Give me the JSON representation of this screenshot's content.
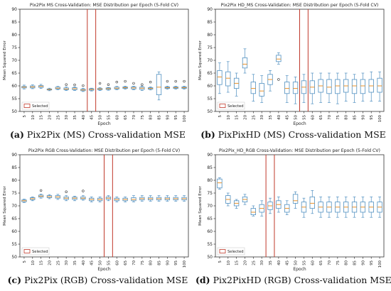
{
  "chart_data": [
    {
      "type": "boxplot",
      "title": "Pix2Pix MS Cross-Validation: MSE Distribution per Epoch (5-Fold CV)",
      "xlabel": "Epoch",
      "ylabel": "Mean Squared Error",
      "ylim": [
        50,
        90
      ],
      "yticks": [
        50,
        55,
        60,
        65,
        70,
        75,
        80,
        85,
        90
      ],
      "categories": [
        "5",
        "10",
        "15",
        "20",
        "25",
        "30",
        "35",
        "40",
        "45",
        "50",
        "55",
        "60",
        "65",
        "70",
        "75",
        "80",
        "85",
        "90",
        "95",
        "100"
      ],
      "selected": [
        "45"
      ],
      "legend": "Selected",
      "legend_position": "bottom-left",
      "caption_letter": "(a)",
      "caption_text": "Pix2Pix (MS) Cross-validation MSE",
      "boxes": [
        {
          "whislo": 58.8,
          "q1": 59.2,
          "med": 59.5,
          "q3": 59.8,
          "whishi": 60.3,
          "fliers": []
        },
        {
          "whislo": 58.9,
          "q1": 59.2,
          "med": 59.6,
          "q3": 60.0,
          "whishi": 60.4,
          "fliers": []
        },
        {
          "whislo": 59.0,
          "q1": 59.4,
          "med": 59.8,
          "q3": 60.1,
          "whishi": 60.6,
          "fliers": []
        },
        {
          "whislo": 58.1,
          "q1": 58.4,
          "med": 58.6,
          "q3": 58.8,
          "whishi": 59.1,
          "fliers": []
        },
        {
          "whislo": 58.5,
          "q1": 58.8,
          "med": 59.1,
          "q3": 59.5,
          "whishi": 59.8,
          "fliers": []
        },
        {
          "whislo": 58.2,
          "q1": 58.5,
          "med": 58.8,
          "q3": 59.2,
          "whishi": 59.6,
          "fliers": [
            60.5
          ]
        },
        {
          "whislo": 58.2,
          "q1": 58.5,
          "med": 58.9,
          "q3": 59.3,
          "whishi": 59.6,
          "fliers": [
            60.4
          ]
        },
        {
          "whislo": 57.8,
          "q1": 58.1,
          "med": 58.4,
          "q3": 58.7,
          "whishi": 59.0,
          "fliers": [
            60.1
          ]
        },
        {
          "whislo": 58.0,
          "q1": 58.3,
          "med": 58.6,
          "q3": 58.9,
          "whishi": 59.1,
          "fliers": []
        },
        {
          "whislo": 58.2,
          "q1": 58.5,
          "med": 58.8,
          "q3": 59.0,
          "whishi": 59.3,
          "fliers": [
            61.0
          ]
        },
        {
          "whislo": 58.3,
          "q1": 58.6,
          "med": 58.9,
          "q3": 59.2,
          "whishi": 59.4,
          "fliers": [
            60.5
          ]
        },
        {
          "whislo": 58.5,
          "q1": 58.8,
          "med": 59.1,
          "q3": 59.5,
          "whishi": 59.8,
          "fliers": [
            61.5
          ]
        },
        {
          "whislo": 58.7,
          "q1": 59.0,
          "med": 59.3,
          "q3": 59.6,
          "whishi": 59.9,
          "fliers": [
            61.8
          ]
        },
        {
          "whislo": 58.5,
          "q1": 58.8,
          "med": 59.2,
          "q3": 59.6,
          "whishi": 59.9,
          "fliers": [
            61.0
          ]
        },
        {
          "whislo": 58.2,
          "q1": 58.6,
          "med": 59.1,
          "q3": 59.5,
          "whishi": 59.8,
          "fliers": [
            60.5
          ]
        },
        {
          "whislo": 58.4,
          "q1": 58.7,
          "med": 59.0,
          "q3": 59.3,
          "whishi": 59.6,
          "fliers": [
            61.5
          ]
        },
        {
          "whislo": 54.5,
          "q1": 56.5,
          "med": 59.5,
          "q3": 64.5,
          "whishi": 65.5,
          "fliers": []
        },
        {
          "whislo": 58.7,
          "q1": 59.0,
          "med": 59.3,
          "q3": 59.6,
          "whishi": 59.9,
          "fliers": [
            61.8
          ]
        },
        {
          "whislo": 58.7,
          "q1": 59.0,
          "med": 59.3,
          "q3": 59.6,
          "whishi": 59.9,
          "fliers": [
            61.8
          ]
        },
        {
          "whislo": 58.7,
          "q1": 59.0,
          "med": 59.3,
          "q3": 59.6,
          "whishi": 59.9,
          "fliers": [
            61.8
          ]
        }
      ]
    },
    {
      "type": "boxplot",
      "title": "Pix2Pix HD_MS Cross-Validation: MSE Distribution per Epoch (5-Fold CV)",
      "xlabel": "Epoch",
      "ylabel": "Mean Squared Error",
      "ylim": [
        50,
        90
      ],
      "yticks": [
        50,
        55,
        60,
        65,
        70,
        75,
        80,
        85,
        90
      ],
      "categories": [
        "5",
        "10",
        "15",
        "20",
        "25",
        "30",
        "35",
        "40",
        "45",
        "50",
        "55",
        "60",
        "65",
        "70",
        "75",
        "80",
        "85",
        "90",
        "95",
        "100"
      ],
      "selected": [
        "55"
      ],
      "legend": "Selected",
      "legend_position": "bottom-left",
      "caption_letter": "(b)",
      "caption_text": "PixPixHD (MS) Cross-validation MSE",
      "boxes": [
        {
          "whislo": 57.0,
          "q1": 60.5,
          "med": 63.5,
          "q3": 66.0,
          "whishi": 69.0,
          "fliers": []
        },
        {
          "whislo": 57.5,
          "q1": 60.0,
          "med": 63.0,
          "q3": 65.5,
          "whishi": 69.5,
          "fliers": []
        },
        {
          "whislo": 56.0,
          "q1": 59.0,
          "med": 61.0,
          "q3": 63.0,
          "whishi": 65.0,
          "fliers": []
        },
        {
          "whislo": 65.0,
          "q1": 67.0,
          "med": 68.5,
          "q3": 71.0,
          "whishi": 74.5,
          "fliers": []
        },
        {
          "whislo": 54.0,
          "q1": 57.0,
          "med": 59.0,
          "q3": 61.5,
          "whishi": 64.5,
          "fliers": []
        },
        {
          "whislo": 53.5,
          "q1": 56.0,
          "med": 58.0,
          "q3": 61.0,
          "whishi": 64.0,
          "fliers": []
        },
        {
          "whislo": 58.0,
          "q1": 60.5,
          "med": 62.5,
          "q3": 64.5,
          "whishi": 66.0,
          "fliers": []
        },
        {
          "whislo": 68.5,
          "q1": 69.5,
          "med": 70.5,
          "q3": 72.0,
          "whishi": 73.0,
          "fliers": [
            62.5
          ]
        },
        {
          "whislo": 53.5,
          "q1": 57.0,
          "med": 59.0,
          "q3": 61.5,
          "whishi": 64.0,
          "fliers": []
        },
        {
          "whislo": 53.0,
          "q1": 57.0,
          "med": 59.0,
          "q3": 61.5,
          "whishi": 63.5,
          "fliers": []
        },
        {
          "whislo": 53.5,
          "q1": 57.0,
          "med": 59.5,
          "q3": 62.0,
          "whishi": 64.5,
          "fliers": []
        },
        {
          "whislo": 53.0,
          "q1": 57.0,
          "med": 59.5,
          "q3": 62.0,
          "whishi": 65.0,
          "fliers": []
        },
        {
          "whislo": 53.5,
          "q1": 57.5,
          "med": 60.0,
          "q3": 62.5,
          "whishi": 65.0,
          "fliers": []
        },
        {
          "whislo": 53.5,
          "q1": 57.0,
          "med": 59.5,
          "q3": 62.5,
          "whishi": 65.0,
          "fliers": []
        },
        {
          "whislo": 53.0,
          "q1": 57.0,
          "med": 60.0,
          "q3": 62.5,
          "whishi": 65.0,
          "fliers": []
        },
        {
          "whislo": 54.0,
          "q1": 57.5,
          "med": 60.0,
          "q3": 62.5,
          "whishi": 65.0,
          "fliers": []
        },
        {
          "whislo": 53.5,
          "q1": 57.0,
          "med": 60.0,
          "q3": 62.5,
          "whishi": 64.5,
          "fliers": []
        },
        {
          "whislo": 54.0,
          "q1": 57.0,
          "med": 60.0,
          "q3": 62.5,
          "whishi": 65.0,
          "fliers": []
        },
        {
          "whislo": 54.0,
          "q1": 57.5,
          "med": 60.0,
          "q3": 62.5,
          "whishi": 65.5,
          "fliers": []
        },
        {
          "whislo": 54.0,
          "q1": 57.5,
          "med": 60.0,
          "q3": 63.0,
          "whishi": 65.5,
          "fliers": []
        }
      ]
    },
    {
      "type": "boxplot",
      "title": "Pix2Pix RGB Cross-Validation: MSE Distribution per Epoch (5-Fold CV)",
      "xlabel": "Epoch",
      "ylabel": "Mean Squared Error",
      "ylim": [
        50,
        90
      ],
      "yticks": [
        50,
        55,
        60,
        65,
        70,
        75,
        80,
        85,
        90
      ],
      "categories": [
        "5",
        "10",
        "15",
        "20",
        "25",
        "30",
        "35",
        "40",
        "45",
        "50",
        "55",
        "60",
        "65",
        "70",
        "75",
        "80",
        "85",
        "90",
        "95",
        "100"
      ],
      "selected": [
        "55"
      ],
      "legend": "Selected",
      "legend_position": "bottom-left",
      "caption_letter": "(c)",
      "caption_text": "Pix2Pix (RGB) Cross-validation MSE",
      "boxes": [
        {
          "whislo": 71.3,
          "q1": 71.6,
          "med": 72.0,
          "q3": 72.3,
          "whishi": 72.6,
          "fliers": []
        },
        {
          "whislo": 72.0,
          "q1": 72.4,
          "med": 72.8,
          "q3": 73.2,
          "whishi": 73.5,
          "fliers": []
        },
        {
          "whislo": 73.0,
          "q1": 73.4,
          "med": 73.8,
          "q3": 74.2,
          "whishi": 74.6,
          "fliers": [
            76.0
          ]
        },
        {
          "whislo": 72.8,
          "q1": 73.2,
          "med": 73.6,
          "q3": 74.0,
          "whishi": 74.4,
          "fliers": []
        },
        {
          "whislo": 72.5,
          "q1": 73.0,
          "med": 73.5,
          "q3": 74.0,
          "whishi": 74.5,
          "fliers": []
        },
        {
          "whislo": 72.0,
          "q1": 72.5,
          "med": 73.0,
          "q3": 73.5,
          "whishi": 74.0,
          "fliers": [
            75.5
          ]
        },
        {
          "whislo": 72.0,
          "q1": 72.5,
          "med": 73.0,
          "q3": 73.4,
          "whishi": 73.8,
          "fliers": []
        },
        {
          "whislo": 72.2,
          "q1": 72.6,
          "med": 73.0,
          "q3": 73.5,
          "whishi": 74.0,
          "fliers": [
            75.8
          ]
        },
        {
          "whislo": 71.5,
          "q1": 72.0,
          "med": 72.5,
          "q3": 73.0,
          "whishi": 73.5,
          "fliers": []
        },
        {
          "whislo": 71.5,
          "q1": 72.0,
          "med": 72.5,
          "q3": 73.0,
          "whishi": 73.5,
          "fliers": []
        },
        {
          "whislo": 72.0,
          "q1": 72.5,
          "med": 73.0,
          "q3": 73.5,
          "whishi": 74.0,
          "fliers": []
        },
        {
          "whislo": 71.5,
          "q1": 72.0,
          "med": 72.5,
          "q3": 73.0,
          "whishi": 73.5,
          "fliers": []
        },
        {
          "whislo": 71.5,
          "q1": 72.0,
          "med": 72.5,
          "q3": 73.0,
          "whishi": 73.5,
          "fliers": []
        },
        {
          "whislo": 71.5,
          "q1": 72.0,
          "med": 72.5,
          "q3": 73.2,
          "whishi": 74.0,
          "fliers": []
        },
        {
          "whislo": 71.8,
          "q1": 72.3,
          "med": 72.8,
          "q3": 73.3,
          "whishi": 74.0,
          "fliers": []
        },
        {
          "whislo": 71.8,
          "q1": 72.3,
          "med": 72.8,
          "q3": 73.3,
          "whishi": 74.0,
          "fliers": []
        },
        {
          "whislo": 71.8,
          "q1": 72.3,
          "med": 72.8,
          "q3": 73.3,
          "whishi": 74.0,
          "fliers": []
        },
        {
          "whislo": 71.8,
          "q1": 72.3,
          "med": 72.8,
          "q3": 73.3,
          "whishi": 74.0,
          "fliers": []
        },
        {
          "whislo": 71.8,
          "q1": 72.3,
          "med": 72.8,
          "q3": 73.3,
          "whishi": 74.0,
          "fliers": []
        },
        {
          "whislo": 71.8,
          "q1": 72.3,
          "med": 72.8,
          "q3": 73.3,
          "whishi": 74.0,
          "fliers": []
        }
      ]
    },
    {
      "type": "boxplot",
      "title": "Pix2Pix_HD_RGB Cross-Validation: MSE Distribution per Epoch (5-Fold CV)",
      "xlabel": "Epoch",
      "ylabel": "Mean Squared Error",
      "ylim": [
        50,
        90
      ],
      "yticks": [
        50,
        55,
        60,
        65,
        70,
        75,
        80,
        85,
        90
      ],
      "categories": [
        "5",
        "10",
        "15",
        "20",
        "25",
        "30",
        "35",
        "40",
        "45",
        "50",
        "55",
        "60",
        "65",
        "70",
        "75",
        "80",
        "85",
        "90",
        "95",
        "100"
      ],
      "selected": [
        "35"
      ],
      "legend": "Selected",
      "legend_position": "bottom-left",
      "caption_letter": "(d)",
      "caption_text": "Pix2PixHD (RGB) Cross-validation MSE",
      "boxes": [
        {
          "whislo": 76.5,
          "q1": 77.0,
          "med": 79.0,
          "q3": 80.5,
          "whishi": 81.0,
          "fliers": []
        },
        {
          "whislo": 70.0,
          "q1": 71.0,
          "med": 72.5,
          "q3": 74.0,
          "whishi": 75.0,
          "fliers": []
        },
        {
          "whislo": 69.0,
          "q1": 70.0,
          "med": 71.0,
          "q3": 72.0,
          "whishi": 72.5,
          "fliers": []
        },
        {
          "whislo": 70.5,
          "q1": 71.5,
          "med": 72.5,
          "q3": 73.5,
          "whishi": 74.5,
          "fliers": []
        },
        {
          "whislo": 66.0,
          "q1": 66.5,
          "med": 67.5,
          "q3": 69.0,
          "whishi": 70.0,
          "fliers": []
        },
        {
          "whislo": 66.0,
          "q1": 67.5,
          "med": 69.0,
          "q3": 70.5,
          "whishi": 72.0,
          "fliers": []
        },
        {
          "whislo": 67.0,
          "q1": 68.5,
          "med": 70.0,
          "q3": 71.5,
          "whishi": 73.0,
          "fliers": []
        },
        {
          "whislo": 67.5,
          "q1": 69.0,
          "med": 70.5,
          "q3": 72.0,
          "whishi": 73.5,
          "fliers": []
        },
        {
          "whislo": 66.5,
          "q1": 67.5,
          "med": 69.0,
          "q3": 70.5,
          "whishi": 72.0,
          "fliers": []
        },
        {
          "whislo": 69.0,
          "q1": 71.0,
          "med": 72.0,
          "q3": 74.5,
          "whishi": 75.5,
          "fliers": []
        },
        {
          "whislo": 65.5,
          "q1": 67.5,
          "med": 69.5,
          "q3": 71.5,
          "whishi": 73.0,
          "fliers": []
        },
        {
          "whislo": 67.0,
          "q1": 69.0,
          "med": 71.0,
          "q3": 73.5,
          "whishi": 76.0,
          "fliers": []
        },
        {
          "whislo": 65.5,
          "q1": 67.5,
          "med": 69.5,
          "q3": 71.5,
          "whishi": 73.5,
          "fliers": []
        },
        {
          "whislo": 65.5,
          "q1": 67.5,
          "med": 69.5,
          "q3": 71.5,
          "whishi": 73.5,
          "fliers": []
        },
        {
          "whislo": 65.5,
          "q1": 67.5,
          "med": 69.5,
          "q3": 71.5,
          "whishi": 73.5,
          "fliers": []
        },
        {
          "whislo": 65.5,
          "q1": 67.5,
          "med": 69.5,
          "q3": 71.5,
          "whishi": 73.5,
          "fliers": []
        },
        {
          "whislo": 65.5,
          "q1": 67.5,
          "med": 69.5,
          "q3": 71.5,
          "whishi": 73.5,
          "fliers": []
        },
        {
          "whislo": 65.5,
          "q1": 67.5,
          "med": 69.5,
          "q3": 71.5,
          "whishi": 73.5,
          "fliers": []
        },
        {
          "whislo": 65.5,
          "q1": 67.5,
          "med": 69.5,
          "q3": 71.5,
          "whishi": 73.5,
          "fliers": []
        },
        {
          "whislo": 65.5,
          "q1": 67.5,
          "med": 69.5,
          "q3": 71.5,
          "whishi": 73.5,
          "fliers": []
        }
      ]
    }
  ],
  "colors": {
    "box": "#4f8fc0",
    "median": "#e8902a",
    "selected": "#c0392b",
    "axis": "#333333"
  }
}
